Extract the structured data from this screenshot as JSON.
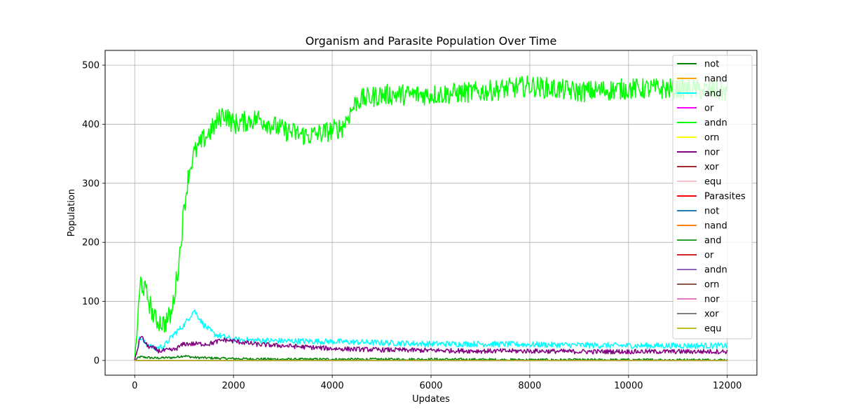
{
  "chart_data": {
    "type": "line",
    "title": "Organism and Parasite Population Over Time",
    "xlabel": "Updates",
    "ylabel": "Population",
    "xlim": [
      -600,
      12600
    ],
    "ylim": [
      -25,
      525
    ],
    "xticks": [
      0,
      2000,
      4000,
      6000,
      8000,
      10000,
      12000
    ],
    "yticks": [
      0,
      100,
      200,
      300,
      400,
      500
    ],
    "grid": true,
    "legend_position": "upper-right",
    "series": [
      {
        "name": "not",
        "group": "organism",
        "color": "#008000",
        "points": [
          [
            0,
            0
          ],
          [
            100,
            6
          ],
          [
            400,
            4
          ],
          [
            800,
            5
          ],
          [
            1000,
            8
          ],
          [
            1200,
            5
          ],
          [
            1600,
            4
          ],
          [
            2000,
            3
          ],
          [
            3000,
            2
          ],
          [
            4000,
            2
          ],
          [
            6000,
            2
          ],
          [
            8000,
            1
          ],
          [
            10000,
            1
          ],
          [
            12000,
            1
          ]
        ],
        "noise": 2
      },
      {
        "name": "nand",
        "group": "organism",
        "color": "#ffa500",
        "points": [
          [
            0,
            0
          ],
          [
            12000,
            0
          ]
        ],
        "noise": 0
      },
      {
        "name": "and",
        "group": "organism",
        "color": "#00ffff",
        "points": [
          [
            0,
            0
          ],
          [
            100,
            40
          ],
          [
            200,
            30
          ],
          [
            400,
            20
          ],
          [
            600,
            25
          ],
          [
            800,
            45
          ],
          [
            1000,
            60
          ],
          [
            1200,
            85
          ],
          [
            1400,
            60
          ],
          [
            1600,
            45
          ],
          [
            2000,
            35
          ],
          [
            3000,
            33
          ],
          [
            4000,
            32
          ],
          [
            5000,
            30
          ],
          [
            6000,
            28
          ],
          [
            7000,
            28
          ],
          [
            8000,
            27
          ],
          [
            9000,
            26
          ],
          [
            10000,
            25
          ],
          [
            11000,
            25
          ],
          [
            12000,
            25
          ]
        ],
        "noise": 5
      },
      {
        "name": "or",
        "group": "organism",
        "color": "#ff00ff",
        "points": [
          [
            0,
            0
          ],
          [
            12000,
            0
          ]
        ],
        "noise": 0
      },
      {
        "name": "andn",
        "group": "organism",
        "color": "#00ff00",
        "points": [
          [
            0,
            0
          ],
          [
            120,
            135
          ],
          [
            250,
            110
          ],
          [
            400,
            70
          ],
          [
            600,
            62
          ],
          [
            750,
            80
          ],
          [
            900,
            170
          ],
          [
            1000,
            260
          ],
          [
            1100,
            320
          ],
          [
            1200,
            350
          ],
          [
            1400,
            375
          ],
          [
            1600,
            395
          ],
          [
            1800,
            420
          ],
          [
            2000,
            400
          ],
          [
            2500,
            410
          ],
          [
            3000,
            390
          ],
          [
            3500,
            380
          ],
          [
            3800,
            385
          ],
          [
            4200,
            395
          ],
          [
            4500,
            440
          ],
          [
            5000,
            450
          ],
          [
            6000,
            450
          ],
          [
            7000,
            455
          ],
          [
            8000,
            465
          ],
          [
            9000,
            455
          ],
          [
            10000,
            460
          ],
          [
            11000,
            460
          ],
          [
            12000,
            455
          ]
        ],
        "noise": 18
      },
      {
        "name": "orn",
        "group": "organism",
        "color": "#ffff00",
        "points": [
          [
            0,
            0
          ],
          [
            12000,
            0
          ]
        ],
        "noise": 0
      },
      {
        "name": "nor",
        "group": "organism",
        "color": "#800080",
        "points": [
          [
            0,
            0
          ],
          [
            120,
            42
          ],
          [
            250,
            25
          ],
          [
            500,
            16
          ],
          [
            800,
            18
          ],
          [
            1000,
            28
          ],
          [
            1500,
            28
          ],
          [
            1800,
            35
          ],
          [
            2500,
            27
          ],
          [
            3000,
            25
          ],
          [
            4000,
            20
          ],
          [
            5000,
            18
          ],
          [
            6000,
            17
          ],
          [
            7000,
            16
          ],
          [
            8000,
            16
          ],
          [
            9000,
            15
          ],
          [
            10000,
            15
          ],
          [
            11000,
            15
          ],
          [
            12000,
            15
          ]
        ],
        "noise": 4
      },
      {
        "name": "xor",
        "group": "organism",
        "color": "#a52a2a",
        "points": [
          [
            0,
            0
          ],
          [
            12000,
            0
          ]
        ],
        "noise": 0
      },
      {
        "name": "equ",
        "group": "organism",
        "color": "#ffc0cb",
        "points": [
          [
            0,
            0
          ],
          [
            12000,
            0
          ]
        ],
        "noise": 0
      },
      {
        "name": "Parasites",
        "group": "parasite",
        "color": "#ff0000",
        "points": [
          [
            0,
            0
          ],
          [
            12000,
            0
          ]
        ],
        "noise": 0
      },
      {
        "name": "not",
        "group": "parasite",
        "color": "#1f77b4",
        "points": [
          [
            0,
            0
          ],
          [
            12000,
            0
          ]
        ],
        "noise": 0
      },
      {
        "name": "nand",
        "group": "parasite",
        "color": "#ff7f0e",
        "points": [
          [
            0,
            0
          ],
          [
            12000,
            0
          ]
        ],
        "noise": 0
      },
      {
        "name": "and",
        "group": "parasite",
        "color": "#2ca02c",
        "points": [
          [
            0,
            0
          ],
          [
            12000,
            0
          ]
        ],
        "noise": 0
      },
      {
        "name": "or",
        "group": "parasite",
        "color": "#d62728",
        "points": [
          [
            0,
            0
          ],
          [
            12000,
            0
          ]
        ],
        "noise": 0
      },
      {
        "name": "andn",
        "group": "parasite",
        "color": "#9467bd",
        "points": [
          [
            0,
            0
          ],
          [
            12000,
            0
          ]
        ],
        "noise": 0
      },
      {
        "name": "orn",
        "group": "parasite",
        "color": "#8c564b",
        "points": [
          [
            0,
            0
          ],
          [
            12000,
            0
          ]
        ],
        "noise": 0
      },
      {
        "name": "nor",
        "group": "parasite",
        "color": "#e377c2",
        "points": [
          [
            0,
            0
          ],
          [
            12000,
            0
          ]
        ],
        "noise": 0
      },
      {
        "name": "xor",
        "group": "parasite",
        "color": "#7f7f7f",
        "points": [
          [
            0,
            0
          ],
          [
            12000,
            0
          ]
        ],
        "noise": 0
      },
      {
        "name": "equ",
        "group": "parasite",
        "color": "#bcbd22",
        "points": [
          [
            0,
            0
          ],
          [
            12000,
            0
          ]
        ],
        "noise": 0
      }
    ]
  }
}
